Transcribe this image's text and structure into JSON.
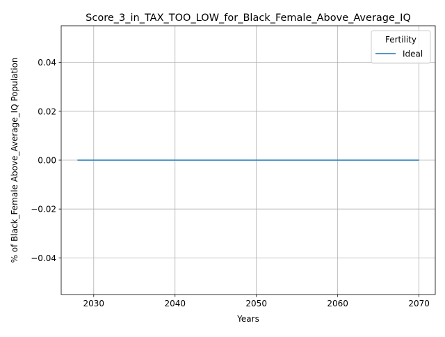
{
  "chart_data": {
    "type": "line",
    "title": "Score_3_in_TAX_TOO_LOW_for_Black_Female_Above_Average_IQ",
    "xlabel": "Years",
    "ylabel": "% of Black_Female Above_Average_IQ Population",
    "xlim": [
      2026,
      2072
    ],
    "ylim": [
      -0.055,
      0.055
    ],
    "x_ticks": [
      2030,
      2040,
      2050,
      2060,
      2070
    ],
    "x_tick_labels": [
      "2030",
      "2040",
      "2050",
      "2060",
      "2070"
    ],
    "y_ticks": [
      -0.04,
      -0.02,
      0.0,
      0.02,
      0.04
    ],
    "y_tick_labels": [
      "−0.04",
      "−0.02",
      "0.00",
      "0.02",
      "0.04"
    ],
    "grid": true,
    "legend": {
      "title": "Fertility",
      "placement": "top-right"
    },
    "series": [
      {
        "name": "Ideal",
        "color": "#1f77b4",
        "x": [
          2028,
          2070
        ],
        "y": [
          0.0,
          0.0
        ]
      }
    ]
  }
}
